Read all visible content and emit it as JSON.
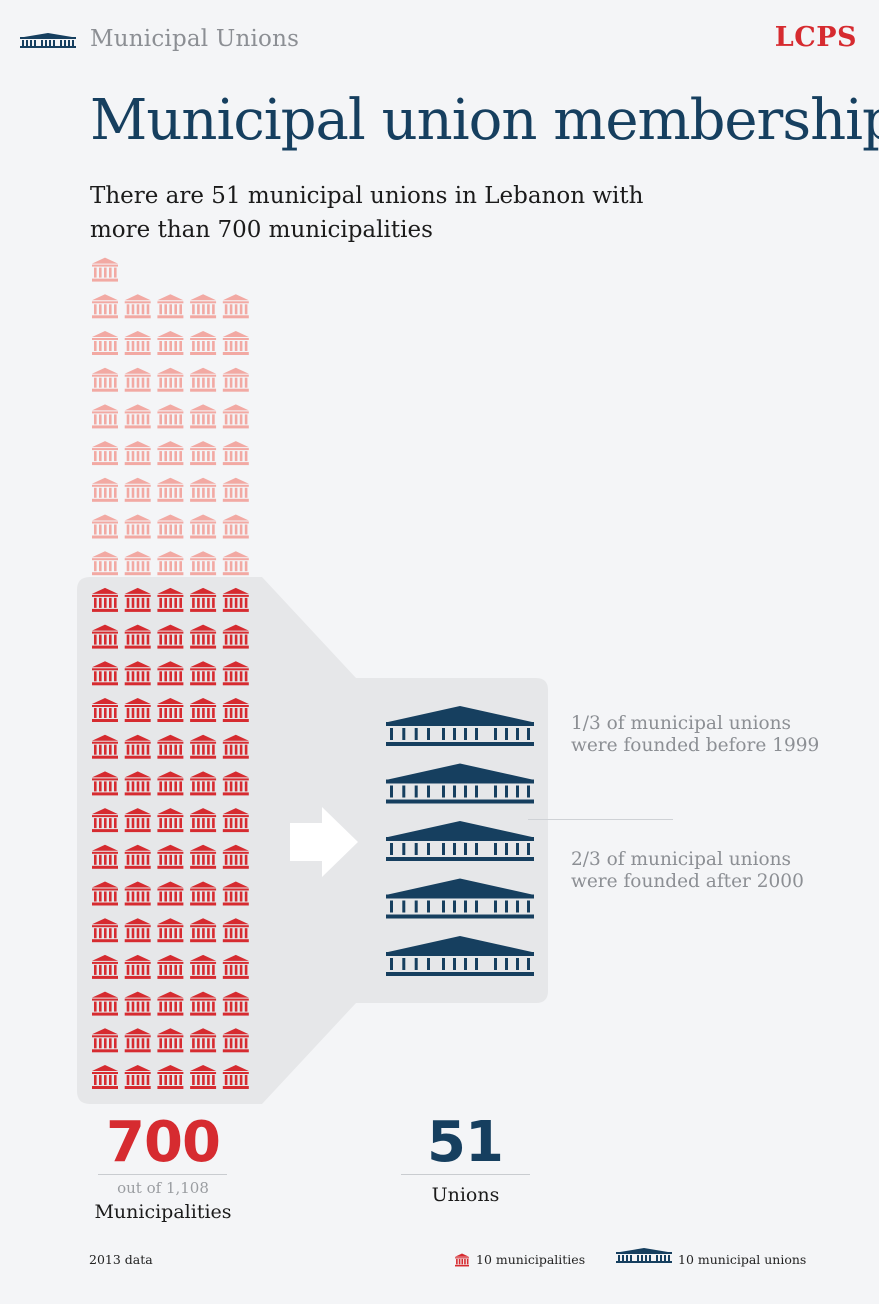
{
  "header": {
    "section_label": "Municipal Unions",
    "brand": "LCPS"
  },
  "title": "Municipal union membership",
  "subtitle": "There are 51 municipal unions in Lebanon with more than 700 municipalities",
  "pictograph": {
    "unit_municipal_icon": 10,
    "unit_union_icon": 10,
    "total_municipalities": 1108,
    "member_municipalities": 700,
    "unions": 51,
    "colors": {
      "member": "#d62b30",
      "non_member": "#f2a9a3",
      "union": "#163f5f",
      "panel": "#e6e7e9"
    }
  },
  "notes": {
    "before": "1/3 of municipal unions were founded before 1999",
    "after": "2/3 of municipal unions were founded after 2000"
  },
  "stats": {
    "municipalities_number": "700",
    "municipalities_out_of": "out of 1,108",
    "municipalities_label": "Municipalities",
    "unions_number": "51",
    "unions_label": "Unions"
  },
  "footer": {
    "source": "2013 data",
    "legend_municipal": "10 municipalities",
    "legend_union": "10 municipal unions"
  }
}
